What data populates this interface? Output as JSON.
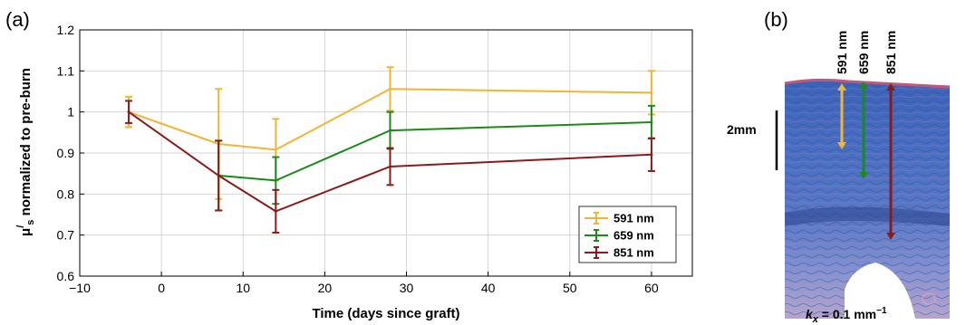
{
  "panel_a_label": "(a)",
  "panel_b_label": "(b)",
  "chart_data": {
    "type": "line",
    "xlabel": "Time (days since graft)",
    "ylabel_main": "μ",
    "ylabel_super": "/",
    "ylabel_sub": "s",
    "ylabel_rest": " normalized to pre-burn",
    "xlim": [
      -10,
      65
    ],
    "ylim": [
      0.6,
      1.2
    ],
    "xticks": [
      -10,
      0,
      10,
      20,
      30,
      40,
      50,
      60
    ],
    "yticks": [
      0.6,
      0.7,
      0.8,
      0.9,
      1.0,
      1.1,
      1.2
    ],
    "xtick_labels": [
      "−10",
      "0",
      "10",
      "20",
      "30",
      "40",
      "50",
      "60"
    ],
    "ytick_labels": [
      "0.6",
      "0.7",
      "0.8",
      "0.9",
      "1",
      "1.1",
      "1.2"
    ],
    "grid": true,
    "legend_position": "bottom-right",
    "series": [
      {
        "name": "591 nm",
        "color": "#f2b533",
        "x": [
          -4,
          7,
          14,
          28,
          60
        ],
        "y": [
          1.0,
          0.922,
          0.908,
          1.056,
          1.047
        ],
        "err": [
          0.037,
          0.134,
          0.075,
          0.053,
          0.053
        ]
      },
      {
        "name": "659 nm",
        "color": "#1a8a1a",
        "x": [
          7,
          14,
          28,
          60
        ],
        "y": [
          0.845,
          0.833,
          0.955,
          0.975
        ],
        "err": [
          0.085,
          0.057,
          0.045,
          0.04
        ]
      },
      {
        "name": "851 nm",
        "color": "#8b1a1a",
        "x": [
          -4,
          7,
          14,
          28,
          60
        ],
        "y": [
          1.0,
          0.845,
          0.758,
          0.867,
          0.896
        ],
        "err": [
          0.027,
          0.085,
          0.052,
          0.045,
          0.04
        ]
      }
    ]
  },
  "histology": {
    "wavelength_labels": [
      "591 nm",
      "659 nm",
      "851 nm"
    ],
    "arrow_colors": [
      "#f2b533",
      "#1a8a1a",
      "#8b1a1a"
    ],
    "scale_label": "2mm",
    "kx_symbol": "k",
    "kx_sub": "x",
    "kx_rest": " = 0.1 mm",
    "kx_exp": "−1"
  }
}
